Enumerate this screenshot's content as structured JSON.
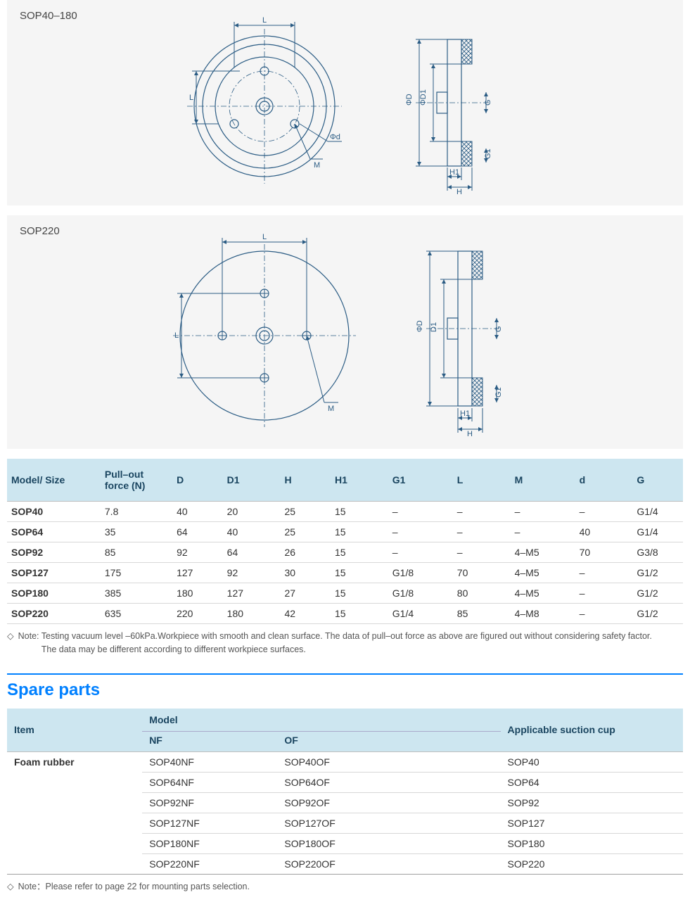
{
  "diagram1": {
    "title": "SOP40–180",
    "labels": {
      "L_top": "L",
      "L_left": "L",
      "phiD": "ΦD",
      "phiD1": "ΦD1",
      "phid": "Φd",
      "M": "M",
      "G": "G",
      "G1": "G1",
      "H": "H",
      "H1": "H1"
    }
  },
  "diagram2": {
    "title": "SOP220",
    "labels": {
      "L_top": "L",
      "L_left": "L",
      "phiD": "ΦD",
      "D1": "D1",
      "M": "M",
      "G": "G",
      "G1": "G1",
      "H": "H",
      "H1": "H1"
    }
  },
  "specTable": {
    "headers": [
      "Model/ Size",
      "Pull–out force  (N)",
      "D",
      "D1",
      "H",
      "H1",
      "G1",
      "L",
      "M",
      "d",
      "G"
    ],
    "rows": [
      [
        "SOP40",
        "7.8",
        "40",
        "20",
        "25",
        "15",
        "–",
        "–",
        "–",
        "–",
        "G1/4"
      ],
      [
        "SOP64",
        "35",
        "64",
        "40",
        "25",
        "15",
        "–",
        "–",
        "–",
        "40",
        "G1/4"
      ],
      [
        "SOP92",
        "85",
        "92",
        "64",
        "26",
        "15",
        "–",
        "–",
        "4–M5",
        "70",
        "G3/8"
      ],
      [
        "SOP127",
        "175",
        "127",
        "92",
        "30",
        "15",
        "G1/8",
        "70",
        "4–M5",
        "–",
        "G1/2"
      ],
      [
        "SOP180",
        "385",
        "180",
        "127",
        "27",
        "15",
        "G1/8",
        "80",
        "4–M5",
        "–",
        "G1/2"
      ],
      [
        "SOP220",
        "635",
        "220",
        "180",
        "42",
        "15",
        "G1/4",
        "85",
        "4–M8",
        "–",
        "G1/2"
      ]
    ],
    "colWidths": [
      "13%",
      "10%",
      "7%",
      "8%",
      "7%",
      "8%",
      "9%",
      "8%",
      "9%",
      "8%",
      "7%"
    ]
  },
  "note1": {
    "marker": "◇",
    "prefix": "Note: ",
    "line1": "Testing vacuum level –60kPa.Workpiece with smooth and clean surface. The data of pull–out force as above are figured out  without considering safety factor.",
    "line2": "The data may be different according to different workpiece surfaces."
  },
  "spareHeading": "Spare parts",
  "spareTable": {
    "h_item": "Item",
    "h_model": "Model",
    "h_nf": "NF",
    "h_of": "OF",
    "h_app": "Applicable suction cup",
    "itemName": "Foam rubber",
    "rows": [
      [
        "SOP40NF",
        "SOP40OF",
        "SOP40"
      ],
      [
        "SOP64NF",
        "SOP64OF",
        "SOP64"
      ],
      [
        "SOP92NF",
        "SOP92OF",
        "SOP92"
      ],
      [
        "SOP127NF",
        "SOP127OF",
        "SOP127"
      ],
      [
        "SOP180NF",
        "SOP180OF",
        "SOP180"
      ],
      [
        "SOP220NF",
        "SOP220OF",
        "SOP220"
      ]
    ]
  },
  "note2": {
    "marker": "◇",
    "prefix": "Note：",
    "text": "Please refer to page 22 for mounting parts selection."
  },
  "colors": {
    "headerBg": "#cde6f0",
    "headerText": "#1a4560",
    "rule": "#d8d8d8",
    "diagramBg": "#f5f5f5",
    "line": "#2b5c84",
    "accent": "#0080ff"
  }
}
